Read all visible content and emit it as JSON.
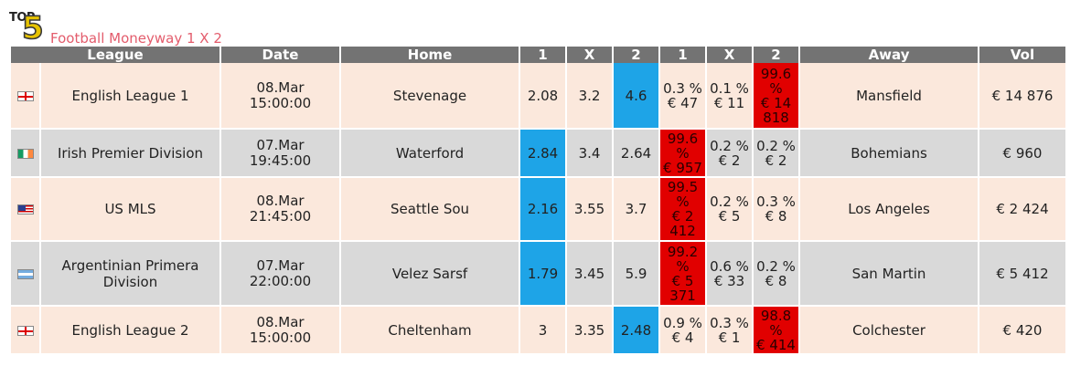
{
  "logo": {
    "top_text": "TOP",
    "number": "5"
  },
  "title": "Football Moneyway 1 X 2",
  "headers": [
    "League",
    "Date",
    "Home",
    "1",
    "X",
    "2",
    "1",
    "X",
    "2",
    "Away",
    "Vol"
  ],
  "rows": [
    {
      "flag": "england-flag-icon",
      "league": "English League 1",
      "date_day": "08.Mar",
      "date_time": "15:00:00",
      "home": "Stevenage",
      "odd1": "2.08",
      "oddx": "3.2",
      "odd2": "4.6",
      "m1_pct": "0.3 %",
      "m1_amt": "€ 47",
      "mx_pct": "0.1 %",
      "mx_amt": "€ 11",
      "m2_pct": "99.6 %",
      "m2_amt": "€ 14 818",
      "away": "Mansfield",
      "vol": "€ 14 876",
      "blue_col": 2,
      "red_col": 2
    },
    {
      "flag": "ireland-flag-icon",
      "league": "Irish Premier Division",
      "date_day": "07.Mar",
      "date_time": "19:45:00",
      "home": "Waterford",
      "odd1": "2.84",
      "oddx": "3.4",
      "odd2": "2.64",
      "m1_pct": "99.6 %",
      "m1_amt": "€ 957",
      "mx_pct": "0.2 %",
      "mx_amt": "€ 2",
      "m2_pct": "0.2 %",
      "m2_amt": "€ 2",
      "away": "Bohemians",
      "vol": "€ 960",
      "blue_col": 0,
      "red_col": 0
    },
    {
      "flag": "usa-flag-icon",
      "league": "US MLS",
      "date_day": "08.Mar",
      "date_time": "21:45:00",
      "home": "Seattle Sou",
      "odd1": "2.16",
      "oddx": "3.55",
      "odd2": "3.7",
      "m1_pct": "99.5 %",
      "m1_amt": "€ 2 412",
      "mx_pct": "0.2 %",
      "mx_amt": "€ 5",
      "m2_pct": "0.3 %",
      "m2_amt": "€ 8",
      "away": "Los Angeles",
      "vol": "€ 2 424",
      "blue_col": 0,
      "red_col": 0
    },
    {
      "flag": "argentina-flag-icon",
      "league": "Argentinian Primera Division",
      "date_day": "07.Mar",
      "date_time": "22:00:00",
      "home": "Velez Sarsf",
      "odd1": "1.79",
      "oddx": "3.45",
      "odd2": "5.9",
      "m1_pct": "99.2 %",
      "m1_amt": "€ 5 371",
      "mx_pct": "0.6 %",
      "mx_amt": "€ 33",
      "m2_pct": "0.2 %",
      "m2_amt": "€ 8",
      "away": "San Martin",
      "vol": "€ 5 412",
      "blue_col": 0,
      "red_col": 0
    },
    {
      "flag": "england-flag-icon",
      "league": "English League 2",
      "date_day": "08.Mar",
      "date_time": "15:00:00",
      "home": "Cheltenham",
      "odd1": "3",
      "oddx": "3.35",
      "odd2": "2.48",
      "m1_pct": "0.9 %",
      "m1_amt": "€ 4",
      "mx_pct": "0.3 %",
      "mx_amt": "€ 1",
      "m2_pct": "98.8 %",
      "m2_amt": "€ 414",
      "away": "Colchester",
      "vol": "€ 420",
      "blue_col": 2,
      "red_col": 2
    }
  ],
  "colors": {
    "header_bg": "#737373",
    "row_peach": "#fbe8dc",
    "row_gray": "#d9d9d9",
    "highlight_blue": "#1ea4e7",
    "highlight_red": "#e10000",
    "title_color": "#e35c6c"
  }
}
